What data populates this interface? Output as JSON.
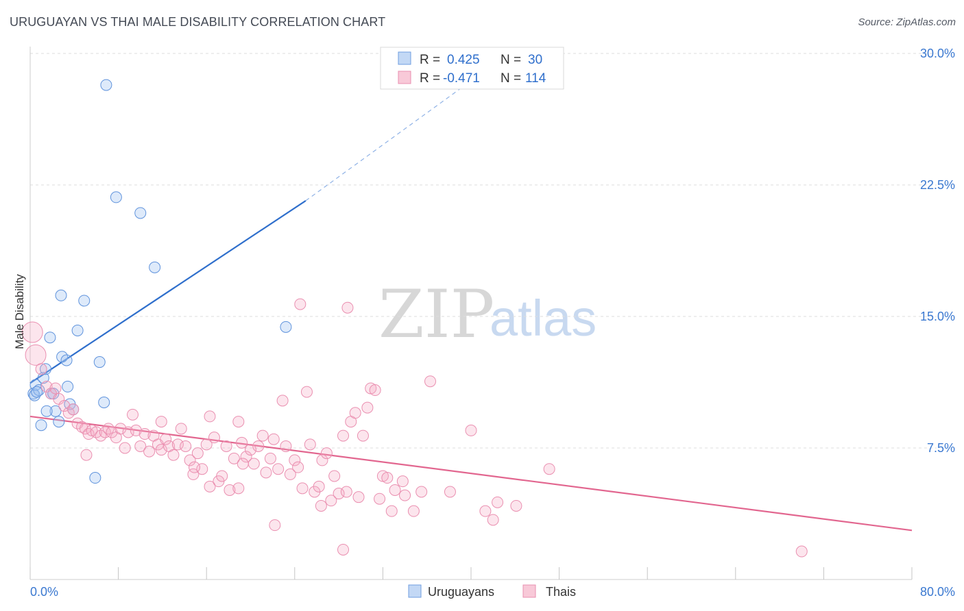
{
  "title": "URUGUAYAN VS THAI MALE DISABILITY CORRELATION CHART",
  "source": "Source: ZipAtlas.com",
  "watermark": {
    "zip": "ZIP",
    "atlas": "atlas"
  },
  "legend_box": {
    "rows": [
      {
        "r_label": "R =",
        "r_value": "0.425",
        "n_label": "N =",
        "n_value": "30",
        "color": "#4f86d6"
      },
      {
        "r_label": "R =",
        "r_value": "-0.471",
        "n_label": "N =",
        "n_value": "114",
        "color": "#e87aa0"
      }
    ]
  },
  "bottom_legend": [
    {
      "label": "Uruguayans",
      "color": "#4f86d6"
    },
    {
      "label": "Thais",
      "color": "#e87aa0"
    }
  ],
  "chart_data": {
    "type": "scatter",
    "title": "URUGUAYAN VS THAI MALE DISABILITY CORRELATION CHART",
    "xlabel": "",
    "ylabel": "Male Disability",
    "xlim": [
      0,
      80
    ],
    "ylim": [
      0,
      30
    ],
    "x_tick_labels": [
      "0.0%",
      "80.0%"
    ],
    "y_ticks": [
      7.5,
      15,
      22.5,
      30
    ],
    "y_tick_labels": [
      "7.5%",
      "15.0%",
      "22.5%",
      "30.0%"
    ],
    "grid": true,
    "series": [
      {
        "name": "Uruguayans",
        "color": "#4f86d6",
        "points": [
          [
            0.3,
            10.6
          ],
          [
            0.5,
            11.1
          ],
          [
            0.4,
            10.5
          ],
          [
            0.8,
            10.8
          ],
          [
            1.2,
            11.5
          ],
          [
            1.4,
            12.0
          ],
          [
            1.8,
            13.8
          ],
          [
            1.9,
            10.6
          ],
          [
            2.3,
            9.6
          ],
          [
            2.6,
            9.0
          ],
          [
            2.8,
            16.2
          ],
          [
            2.9,
            12.7
          ],
          [
            3.3,
            12.5
          ],
          [
            3.4,
            11.0
          ],
          [
            3.6,
            10.0
          ],
          [
            3.9,
            9.7
          ],
          [
            4.3,
            14.2
          ],
          [
            4.9,
            15.9
          ],
          [
            5.9,
            5.8
          ],
          [
            6.3,
            12.4
          ],
          [
            6.7,
            10.1
          ],
          [
            6.9,
            28.2
          ],
          [
            7.8,
            21.8
          ],
          [
            10.0,
            20.9
          ],
          [
            11.3,
            17.8
          ],
          [
            23.2,
            14.4
          ],
          [
            1.0,
            8.8
          ],
          [
            1.5,
            9.6
          ],
          [
            2.1,
            10.6
          ],
          [
            0.6,
            10.7
          ]
        ],
        "trend": {
          "x": [
            0,
            25
          ],
          "y": [
            11.2,
            21.6
          ],
          "dashed_to": [
            43,
            29.8
          ]
        }
      },
      {
        "name": "Thais",
        "color": "#e87aa0",
        "points": [
          [
            0.2,
            14.1
          ],
          [
            0.5,
            12.8
          ],
          [
            1.0,
            12.0
          ],
          [
            1.5,
            11.0
          ],
          [
            1.9,
            10.6
          ],
          [
            2.3,
            10.9
          ],
          [
            2.6,
            10.3
          ],
          [
            3.1,
            9.9
          ],
          [
            3.5,
            9.5
          ],
          [
            3.9,
            9.7
          ],
          [
            4.3,
            8.9
          ],
          [
            4.7,
            8.7
          ],
          [
            5.0,
            8.6
          ],
          [
            5.3,
            8.3
          ],
          [
            5.6,
            8.5
          ],
          [
            6.0,
            8.4
          ],
          [
            6.4,
            8.2
          ],
          [
            6.8,
            8.4
          ],
          [
            7.1,
            8.6
          ],
          [
            7.4,
            8.4
          ],
          [
            7.8,
            8.1
          ],
          [
            8.2,
            8.6
          ],
          [
            8.6,
            7.5
          ],
          [
            8.9,
            8.4
          ],
          [
            9.3,
            9.4
          ],
          [
            9.6,
            8.5
          ],
          [
            10.0,
            7.6
          ],
          [
            10.4,
            8.3
          ],
          [
            10.8,
            7.3
          ],
          [
            11.2,
            8.2
          ],
          [
            11.6,
            7.7
          ],
          [
            11.9,
            7.4
          ],
          [
            12.3,
            8.0
          ],
          [
            12.6,
            7.6
          ],
          [
            13.0,
            7.1
          ],
          [
            13.4,
            7.7
          ],
          [
            13.7,
            8.6
          ],
          [
            14.1,
            7.6
          ],
          [
            14.5,
            6.8
          ],
          [
            14.8,
            6.0
          ],
          [
            15.2,
            7.2
          ],
          [
            15.6,
            6.3
          ],
          [
            16.0,
            7.7
          ],
          [
            16.3,
            9.3
          ],
          [
            16.7,
            8.1
          ],
          [
            17.1,
            5.6
          ],
          [
            17.4,
            5.9
          ],
          [
            17.8,
            7.6
          ],
          [
            18.1,
            5.1
          ],
          [
            18.5,
            6.9
          ],
          [
            18.9,
            9.0
          ],
          [
            19.2,
            7.8
          ],
          [
            19.6,
            7.0
          ],
          [
            20.0,
            7.4
          ],
          [
            20.3,
            6.6
          ],
          [
            20.7,
            7.6
          ],
          [
            21.1,
            8.2
          ],
          [
            21.4,
            6.1
          ],
          [
            21.8,
            6.9
          ],
          [
            22.1,
            8.0
          ],
          [
            22.5,
            6.3
          ],
          [
            22.9,
            10.2
          ],
          [
            23.2,
            7.6
          ],
          [
            23.6,
            6.0
          ],
          [
            24.0,
            6.8
          ],
          [
            24.3,
            6.4
          ],
          [
            24.7,
            5.2
          ],
          [
            25.1,
            10.7
          ],
          [
            25.4,
            7.7
          ],
          [
            25.8,
            5.0
          ],
          [
            26.2,
            5.3
          ],
          [
            26.5,
            6.8
          ],
          [
            26.9,
            7.2
          ],
          [
            27.3,
            4.5
          ],
          [
            27.6,
            5.9
          ],
          [
            28.0,
            4.9
          ],
          [
            28.4,
            8.2
          ],
          [
            28.7,
            5.0
          ],
          [
            29.1,
            9.0
          ],
          [
            29.5,
            9.5
          ],
          [
            29.8,
            4.7
          ],
          [
            30.2,
            8.2
          ],
          [
            30.6,
            9.8
          ],
          [
            30.9,
            10.9
          ],
          [
            31.3,
            10.8
          ],
          [
            31.7,
            4.6
          ],
          [
            32.0,
            5.9
          ],
          [
            32.4,
            5.8
          ],
          [
            32.8,
            3.9
          ],
          [
            33.1,
            5.1
          ],
          [
            34.0,
            4.8
          ],
          [
            34.8,
            3.9
          ],
          [
            35.5,
            5.0
          ],
          [
            36.3,
            11.3
          ],
          [
            38.1,
            5.0
          ],
          [
            40.0,
            8.5
          ],
          [
            41.3,
            3.9
          ],
          [
            42.0,
            3.4
          ],
          [
            42.4,
            4.4
          ],
          [
            44.1,
            4.2
          ],
          [
            47.1,
            6.3
          ],
          [
            18.9,
            5.2
          ],
          [
            24.5,
            15.7
          ],
          [
            28.8,
            15.5
          ],
          [
            14.9,
            6.4
          ],
          [
            33.8,
            5.6
          ],
          [
            28.4,
            1.7
          ],
          [
            22.2,
            3.1
          ],
          [
            26.4,
            4.2
          ],
          [
            70.0,
            1.6
          ],
          [
            11.9,
            9.0
          ],
          [
            19.3,
            6.6
          ],
          [
            16.3,
            5.3
          ],
          [
            5.1,
            7.1
          ]
        ],
        "trend": {
          "x": [
            0,
            80
          ],
          "y": [
            9.3,
            2.8
          ]
        }
      }
    ]
  }
}
